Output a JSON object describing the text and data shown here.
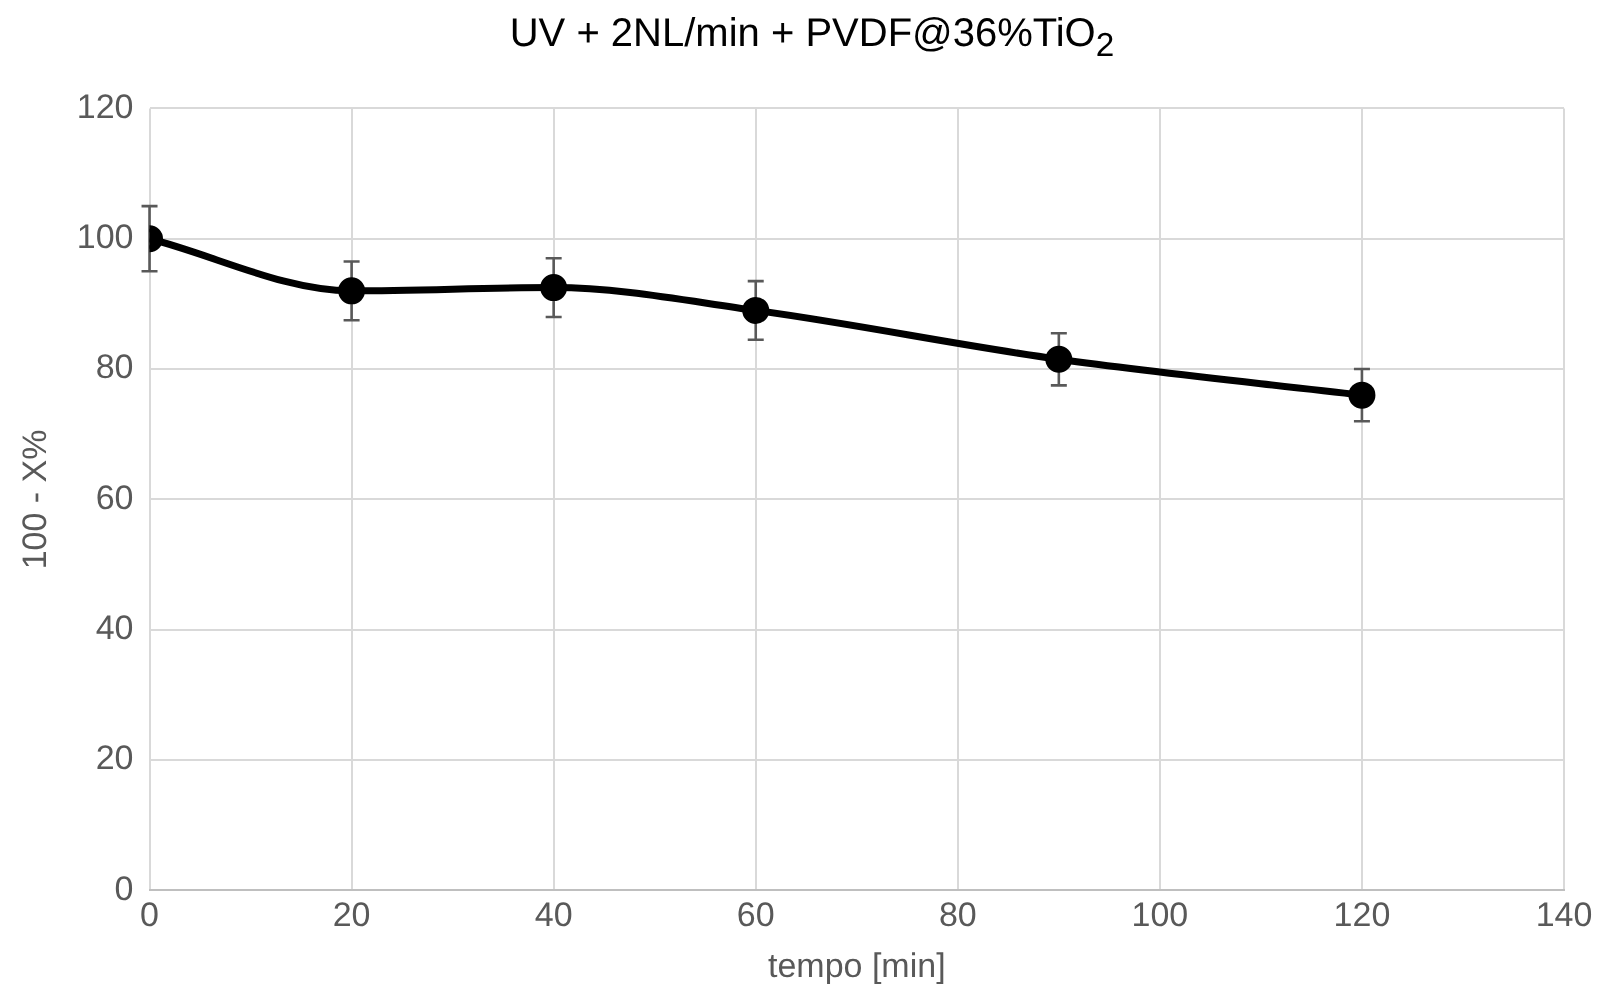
{
  "chart_data": {
    "type": "line",
    "title": "UV + 2NL/min + PVDF@36%TiO$_{2}$",
    "xlabel": "tempo [min]",
    "ylabel": "100 - X%",
    "x": [
      0,
      20,
      40,
      60,
      90,
      120
    ],
    "series": [
      {
        "color": "#000000",
        "values": [
          100,
          92,
          92.5,
          89,
          81.5,
          76
        ],
        "errors": [
          5,
          4.5,
          4.5,
          4.5,
          4,
          4
        ]
      }
    ],
    "xlim": [
      0,
      140
    ],
    "xticks": [
      0,
      20,
      40,
      60,
      80,
      100,
      120,
      140
    ],
    "ylim": [
      0,
      120
    ],
    "yticks": [
      0,
      20,
      40,
      60,
      80,
      100,
      120
    ],
    "grid": true,
    "legend": false,
    "marker": "circle",
    "line_style": "solid"
  }
}
